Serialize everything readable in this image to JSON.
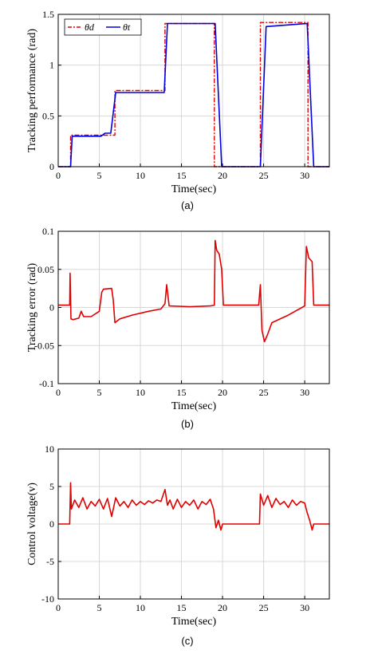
{
  "chart_data": [
    {
      "type": "line",
      "caption": "(a)",
      "xlabel": "Time(sec)",
      "ylabel": "Tracking performance (rad)",
      "xlim": [
        0,
        33
      ],
      "ylim": [
        0,
        1.5
      ],
      "xticks": [
        "0",
        "5",
        "10",
        "15",
        "20",
        "25",
        "30"
      ],
      "yticks": [
        "0",
        "0.5",
        "1",
        "1.5"
      ],
      "grid": true,
      "legend": "top-left",
      "series": [
        {
          "name": "θd",
          "color": "#e00000",
          "style": "dash-dot",
          "x": [
            0,
            1.5,
            1.5,
            5.5,
            5.5,
            6.9,
            6.9,
            13,
            13,
            19,
            19,
            24.6,
            24.6,
            30.4,
            30.4,
            33
          ],
          "y": [
            0,
            0,
            0.31,
            0.31,
            0.31,
            0.31,
            0.75,
            0.75,
            1.41,
            1.41,
            0,
            0,
            1.42,
            1.42,
            0,
            0
          ]
        },
        {
          "name": "θt",
          "color": "#0000e0",
          "style": "solid",
          "x": [
            0,
            1.5,
            1.7,
            5.2,
            5.7,
            6.4,
            7.0,
            12.9,
            13.3,
            19.1,
            19.9,
            24.6,
            25.3,
            30.3,
            31.1,
            33
          ],
          "y": [
            0,
            0,
            0.3,
            0.3,
            0.33,
            0.33,
            0.73,
            0.73,
            1.41,
            1.41,
            0,
            0,
            1.38,
            1.41,
            0,
            0
          ]
        }
      ]
    },
    {
      "type": "line",
      "caption": "(b)",
      "xlabel": "Time(sec)",
      "ylabel": "Tracking error (rad)",
      "xlim": [
        0,
        33
      ],
      "ylim": [
        -0.1,
        0.1
      ],
      "xticks": [
        "0",
        "5",
        "10",
        "15",
        "20",
        "25",
        "30"
      ],
      "yticks": [
        "-0.1",
        "-0.05",
        "0",
        "0.05",
        "0.1"
      ],
      "grid": true,
      "series": [
        {
          "color": "#e00000",
          "x": [
            0,
            1.4,
            1.45,
            1.55,
            1.8,
            2.5,
            2.8,
            3.1,
            4.0,
            5.0,
            5.3,
            5.5,
            6.5,
            6.7,
            6.9,
            7.5,
            9.0,
            11.0,
            12.5,
            13.0,
            13.2,
            13.5,
            16.0,
            18.5,
            19.0,
            19.1,
            19.3,
            19.6,
            19.9,
            20.1,
            24.4,
            24.6,
            24.8,
            25.1,
            25.5,
            26.0,
            28.0,
            30.0,
            30.2,
            30.5,
            30.9,
            31.1,
            31.3,
            33
          ],
          "y": [
            0.003,
            0.003,
            0.045,
            -0.015,
            -0.016,
            -0.014,
            -0.005,
            -0.012,
            -0.012,
            -0.005,
            0.02,
            0.024,
            0.025,
            0.01,
            -0.02,
            -0.015,
            -0.01,
            -0.005,
            -0.002,
            0.005,
            0.03,
            0.002,
            0.001,
            0.002,
            0.003,
            0.088,
            0.075,
            0.07,
            0.05,
            0.003,
            0.003,
            0.03,
            -0.03,
            -0.045,
            -0.035,
            -0.02,
            -0.01,
            0.002,
            0.08,
            0.065,
            0.06,
            0.003,
            0.003,
            0.003
          ]
        }
      ]
    },
    {
      "type": "line",
      "caption": "(c)",
      "xlabel": "Time(sec)",
      "ylabel": "Control voltage(v)",
      "xlim": [
        0,
        33
      ],
      "ylim": [
        -10,
        10
      ],
      "xticks": [
        "0",
        "5",
        "10",
        "15",
        "20",
        "25",
        "30"
      ],
      "yticks": [
        "-10",
        "-5",
        "0",
        "5",
        "10"
      ],
      "grid": true,
      "series": [
        {
          "color": "#e00000",
          "x": [
            0,
            1.4,
            1.5,
            1.6,
            2.0,
            2.5,
            3.0,
            3.5,
            4.0,
            4.5,
            5.0,
            5.5,
            6.0,
            6.5,
            7.0,
            7.5,
            8.0,
            8.5,
            9.0,
            9.5,
            10.0,
            10.5,
            11.0,
            11.5,
            12.0,
            12.5,
            13.0,
            13.3,
            13.6,
            14.0,
            14.5,
            15.0,
            15.5,
            16.0,
            16.5,
            17.0,
            17.5,
            18.0,
            18.5,
            18.9,
            19.2,
            19.5,
            19.8,
            20.0,
            24.5,
            24.6,
            25.0,
            25.5,
            26.0,
            26.5,
            27.0,
            27.5,
            28.0,
            28.5,
            29.0,
            29.5,
            30.0,
            30.3,
            30.6,
            30.9,
            31.1,
            33
          ],
          "y": [
            0,
            0,
            5.5,
            2.0,
            3.2,
            2.2,
            3.5,
            2.0,
            3.0,
            2.4,
            3.3,
            2.0,
            3.4,
            1.0,
            3.5,
            2.4,
            3.0,
            2.2,
            3.2,
            2.5,
            3.0,
            2.6,
            3.1,
            2.8,
            3.2,
            3.0,
            4.6,
            2.5,
            3.2,
            2.0,
            3.3,
            2.2,
            3.0,
            2.5,
            3.2,
            2.0,
            3.0,
            2.6,
            3.3,
            2.0,
            -0.5,
            0.5,
            -0.8,
            0,
            0,
            4.0,
            2.5,
            3.8,
            2.2,
            3.4,
            2.6,
            3.0,
            2.2,
            3.2,
            2.5,
            3.0,
            2.8,
            1.5,
            0.5,
            -0.8,
            0,
            0
          ]
        }
      ]
    }
  ]
}
